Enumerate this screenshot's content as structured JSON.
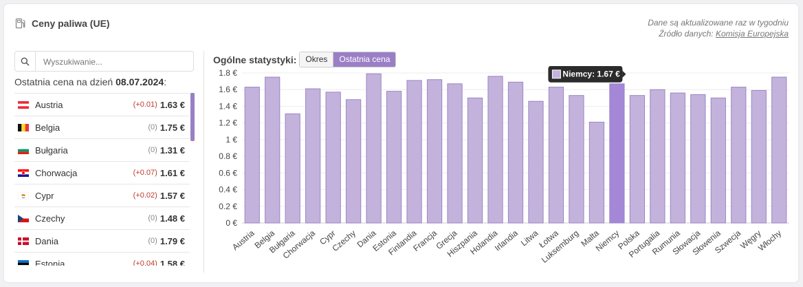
{
  "header": {
    "title": "Ceny paliwa (UE)",
    "note_line1": "Dane są aktualizowane raz w tygodniu",
    "note_line2_prefix": "Źródło danych: ",
    "note_line2_source": "Komisja Europejska"
  },
  "sidebar": {
    "search_placeholder": "Wyszukiwanie...",
    "last_price_label": "Ostatnia cena na dzień",
    "last_price_date": "08.07.2024",
    "last_price_suffix": ":",
    "items": [
      {
        "name": "Austria",
        "change": "(+0.01)",
        "price": "1.63 €",
        "flag": "austria-flag-icon"
      },
      {
        "name": "Belgia",
        "change": "(0)",
        "price": "1.75 €",
        "flag": "belgium-flag-icon"
      },
      {
        "name": "Bułgaria",
        "change": "(0)",
        "price": "1.31 €",
        "flag": "bulgaria-flag-icon"
      },
      {
        "name": "Chorwacja",
        "change": "(+0.07)",
        "price": "1.61 €",
        "flag": "croatia-flag-icon"
      },
      {
        "name": "Cypr",
        "change": "(+0.02)",
        "price": "1.57 €",
        "flag": "cyprus-flag-icon"
      },
      {
        "name": "Czechy",
        "change": "(0)",
        "price": "1.48 €",
        "flag": "czechia-flag-icon"
      },
      {
        "name": "Dania",
        "change": "(0)",
        "price": "1.79 €",
        "flag": "denmark-flag-icon"
      },
      {
        "name": "Estonia",
        "change": "(+0.04)",
        "price": "1.58 €",
        "flag": "estonia-flag-icon"
      }
    ]
  },
  "stats": {
    "label": "Ogólne statystyki:",
    "tab_period": "Okres",
    "tab_last_price": "Ostatnia cena"
  },
  "chart_data": {
    "type": "bar",
    "categories": [
      "Austria",
      "Belgia",
      "Bułgaria",
      "Chorwacja",
      "Cypr",
      "Czechy",
      "Dania",
      "Estonia",
      "Finlandia",
      "Francja",
      "Grecja",
      "Hiszpania",
      "Holandia",
      "Irlandia",
      "Litwa",
      "Łotwa",
      "Luksemburg",
      "Malta",
      "Niemcy",
      "Polska",
      "Portugalia",
      "Rumunia",
      "Słowacja",
      "Słowenia",
      "Szwecja",
      "Węgry",
      "Włochy"
    ],
    "values": [
      1.63,
      1.75,
      1.31,
      1.61,
      1.57,
      1.48,
      1.79,
      1.58,
      1.71,
      1.72,
      1.67,
      1.5,
      1.76,
      1.69,
      1.46,
      1.63,
      1.53,
      1.21,
      1.67,
      1.53,
      1.6,
      1.56,
      1.54,
      1.5,
      1.63,
      1.59,
      1.75
    ],
    "y_ticks": [
      "0 €",
      "0.2 €",
      "0.4 €",
      "0.6 €",
      "0.8 €",
      "1 €",
      "1.2 €",
      "1.4 €",
      "1.6 €",
      "1.8 €"
    ],
    "ylim": [
      0,
      1.8
    ],
    "highlighted": "Niemcy",
    "tooltip": "Niemcy: 1.67 €",
    "bar_color": "#c3b3dc",
    "bar_stroke": "#9b84c4",
    "highlight_color": "#a587d8",
    "grid": true
  }
}
